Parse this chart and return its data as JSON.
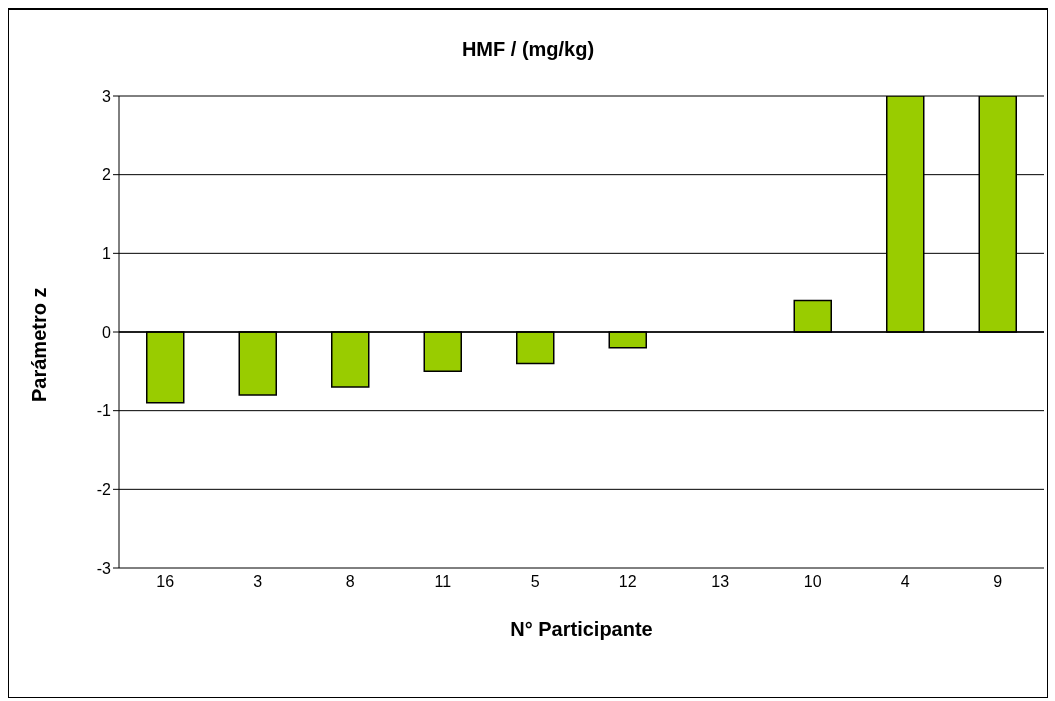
{
  "chart_data": {
    "type": "bar",
    "title": "HMF / (mg/kg)",
    "xlabel": "N° Participante",
    "ylabel": "Parámetro  z",
    "categories": [
      "16",
      "3",
      "8",
      "11",
      "5",
      "12",
      "13",
      "10",
      "4",
      "9"
    ],
    "values": [
      -0.9,
      -0.8,
      -0.7,
      -0.5,
      -0.4,
      -0.2,
      0,
      0.4,
      3,
      3
    ],
    "color": "#99cc00",
    "ylim": [
      -3,
      3
    ],
    "yticks": [
      -3,
      -2,
      -1,
      0,
      1,
      2,
      3
    ],
    "grid": "y"
  }
}
